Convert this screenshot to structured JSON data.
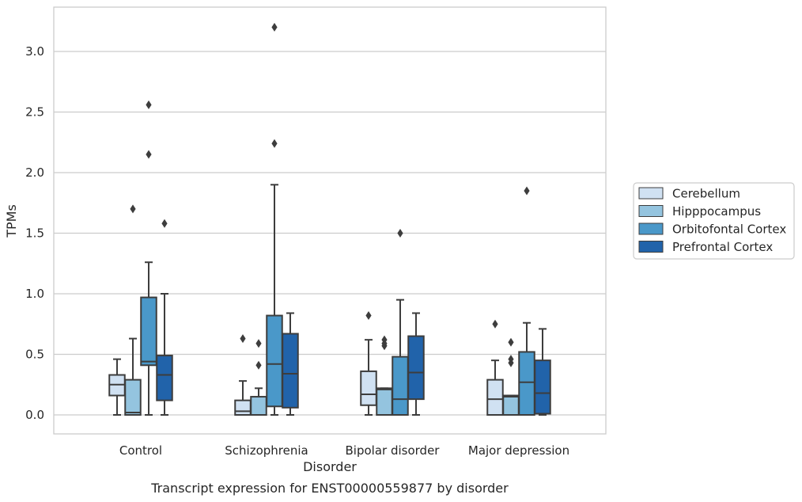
{
  "chart_data": {
    "type": "box",
    "caption": "Transcript expression for ENST00000559877 by disorder",
    "xlabel": "Disorder",
    "ylabel": "TPMs",
    "ylim": [
      -0.15,
      3.38
    ],
    "yticks": [
      0.0,
      0.5,
      1.0,
      1.5,
      2.0,
      2.5,
      3.0
    ],
    "ytick_labels": [
      "0.0",
      "0.5",
      "1.0",
      "1.5",
      "2.0",
      "2.5",
      "3.0"
    ],
    "grid": "horizontal",
    "legend_position": "right",
    "categories": [
      "Control",
      "Schizophrenia",
      "Bipolar disorder",
      "Major depression"
    ],
    "series": [
      {
        "name": "Cerebellum",
        "color": "#d0e1f2",
        "boxes": [
          {
            "whisker_low": 0.0,
            "q1": 0.16,
            "median": 0.25,
            "q3": 0.33,
            "whisker_high": 0.46,
            "outliers": []
          },
          {
            "whisker_low": 0.0,
            "q1": 0.0,
            "median": 0.03,
            "q3": 0.12,
            "whisker_high": 0.28,
            "outliers": [
              0.63
            ]
          },
          {
            "whisker_low": 0.0,
            "q1": 0.08,
            "median": 0.17,
            "q3": 0.36,
            "whisker_high": 0.62,
            "outliers": [
              0.82
            ]
          },
          {
            "whisker_low": 0.0,
            "q1": 0.0,
            "median": 0.13,
            "q3": 0.29,
            "whisker_high": 0.45,
            "outliers": [
              0.75
            ]
          }
        ]
      },
      {
        "name": "Hipppocampus",
        "color": "#94c4df",
        "boxes": [
          {
            "whisker_low": 0.0,
            "q1": 0.0,
            "median": 0.02,
            "q3": 0.29,
            "whisker_high": 0.63,
            "outliers": [
              1.7
            ]
          },
          {
            "whisker_low": 0.0,
            "q1": 0.0,
            "median": 0.0,
            "q3": 0.15,
            "whisker_high": 0.22,
            "outliers": [
              0.41,
              0.59
            ]
          },
          {
            "whisker_low": 0.0,
            "q1": 0.0,
            "median": 0.21,
            "q3": 0.22,
            "whisker_high": 0.22,
            "outliers": [
              0.57,
              0.59,
              0.62
            ]
          },
          {
            "whisker_low": 0.0,
            "q1": 0.0,
            "median": 0.15,
            "q3": 0.16,
            "whisker_high": 0.16,
            "outliers": [
              0.43,
              0.46,
              0.6
            ]
          }
        ]
      },
      {
        "name": "Orbitofontal Cortex",
        "color": "#4a98c9",
        "boxes": [
          {
            "whisker_low": 0.0,
            "q1": 0.41,
            "median": 0.44,
            "q3": 0.97,
            "whisker_high": 1.26,
            "outliers": [
              2.15,
              2.56
            ]
          },
          {
            "whisker_low": 0.0,
            "q1": 0.07,
            "median": 0.42,
            "q3": 0.82,
            "whisker_high": 1.9,
            "outliers": [
              2.24,
              3.2
            ]
          },
          {
            "whisker_low": 0.0,
            "q1": 0.0,
            "median": 0.13,
            "q3": 0.48,
            "whisker_high": 0.95,
            "outliers": [
              1.5
            ]
          },
          {
            "whisker_low": 0.0,
            "q1": 0.0,
            "median": 0.27,
            "q3": 0.52,
            "whisker_high": 0.76,
            "outliers": [
              1.85
            ]
          }
        ]
      },
      {
        "name": "Prefrontal Cortex",
        "color": "#2163aa",
        "boxes": [
          {
            "whisker_low": 0.0,
            "q1": 0.12,
            "median": 0.33,
            "q3": 0.49,
            "whisker_high": 1.0,
            "outliers": [
              1.58
            ]
          },
          {
            "whisker_low": 0.0,
            "q1": 0.06,
            "median": 0.34,
            "q3": 0.67,
            "whisker_high": 0.84,
            "outliers": []
          },
          {
            "whisker_low": 0.0,
            "q1": 0.13,
            "median": 0.35,
            "q3": 0.65,
            "whisker_high": 0.84,
            "outliers": []
          },
          {
            "whisker_low": 0.0,
            "q1": 0.01,
            "median": 0.18,
            "q3": 0.45,
            "whisker_high": 0.71,
            "outliers": []
          }
        ]
      }
    ]
  }
}
